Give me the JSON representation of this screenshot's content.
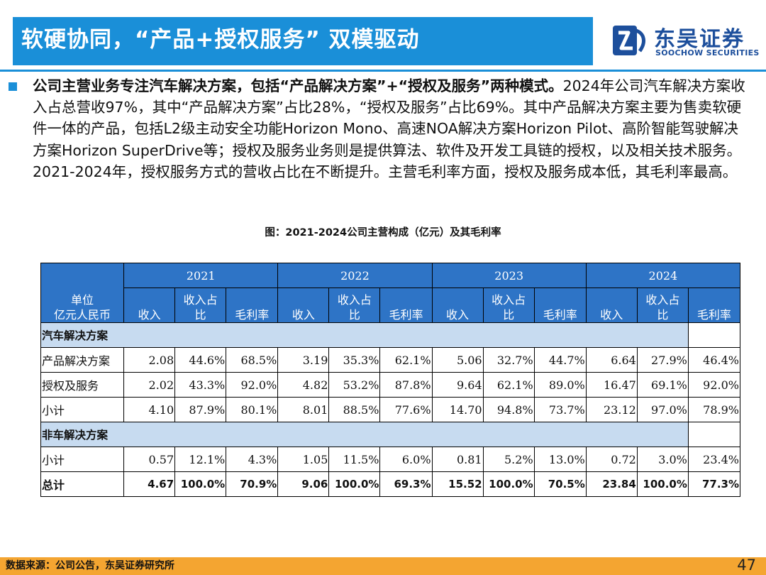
{
  "header": {
    "title": "软硬协同，“产品+授权服务” 双模驱动",
    "logo_cn": "东吴证券",
    "logo_en": "SOOCHOW SECURITIES"
  },
  "summary": {
    "bold_lead": "公司主营业务专注汽车解决方案，包括“产品解决方案”+“授权及服务”两种模式。",
    "body": "2024年公司汽车解决方案收入占总营收97%，其中“产品解决方案”占比28%，“授权及服务”占比69%。其中产品解决方案主要为售卖软硬件一体的产品，包括L2级主动安全功能Horizon Mono、高速NOA解决方案Horizon Pilot、高阶智能驾驶解决方案Horizon SuperDrive等；授权及服务业务则是提供算法、软件及开发工具链的授权，以及相关技术服务。2021-2024年，授权服务方式的营收占比在不断提升。主营毛利率方面，授权及服务成本低，其毛利率最高。"
  },
  "figure_title": "图：2021-2024公司主营构成（亿元）及其毛利率",
  "table": {
    "unit_line1": "单位",
    "unit_line2": "亿元人民币",
    "years": [
      "2021",
      "2022",
      "2023",
      "2024"
    ],
    "sub_headers": {
      "revenue": "收入",
      "share_line1": "收入占",
      "share_line2": "比",
      "margin": "毛利率"
    },
    "sections": [
      {
        "title": "汽车解决方案",
        "rows": [
          {
            "label": "产品解决方案",
            "values": [
              "2.08",
              "44.6%",
              "68.5%",
              "3.19",
              "35.3%",
              "62.1%",
              "5.06",
              "32.7%",
              "44.7%",
              "6.64",
              "27.9%",
              "46.4%"
            ]
          },
          {
            "label": "授权及服务",
            "values": [
              "2.02",
              "43.3%",
              "92.0%",
              "4.82",
              "53.2%",
              "87.8%",
              "9.64",
              "62.1%",
              "89.0%",
              "16.47",
              "69.1%",
              "92.0%"
            ]
          },
          {
            "label": "小计",
            "values": [
              "4.10",
              "87.9%",
              "80.1%",
              "8.01",
              "88.5%",
              "77.6%",
              "14.70",
              "94.8%",
              "73.7%",
              "23.12",
              "97.0%",
              "78.9%"
            ]
          }
        ]
      },
      {
        "title": "非车解决方案",
        "rows": [
          {
            "label": "小计",
            "values": [
              "0.57",
              "12.1%",
              "4.3%",
              "1.05",
              "11.5%",
              "6.0%",
              "0.81",
              "5.2%",
              "13.0%",
              "0.72",
              "3.0%",
              "23.4%"
            ]
          }
        ]
      }
    ],
    "total": {
      "label": "总计",
      "values": [
        "4.67",
        "100.0%",
        "70.9%",
        "9.06",
        "100.0%",
        "69.3%",
        "15.52",
        "100.0%",
        "70.5%",
        "23.84",
        "100.0%",
        "77.3%"
      ]
    }
  },
  "footer": {
    "source": "数据来源：公司公告，东吴证券研究所",
    "page_number": "47"
  },
  "colors": {
    "title_bar": "#1a8fd8",
    "table_header": "#2e74c6",
    "section_row": "#c7dbf0",
    "footer_bar": "#f4a531",
    "logo": "#1d4f9c"
  }
}
